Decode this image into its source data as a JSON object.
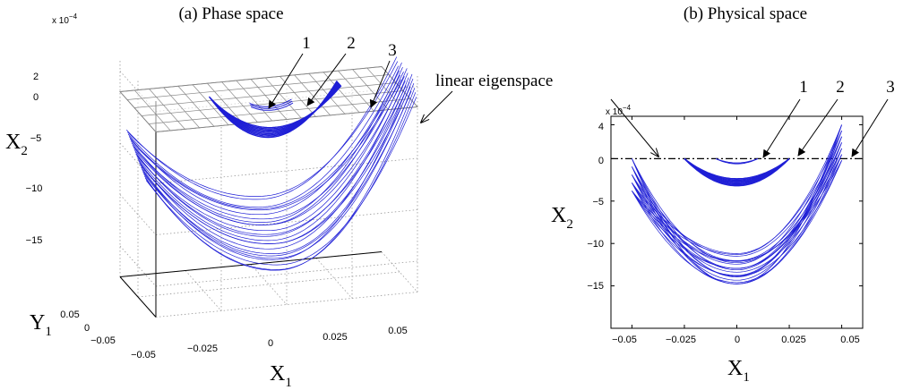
{
  "chart_data": [
    {
      "title": "(a) Phase space",
      "type": "line",
      "projection": "3d",
      "exponent_label": "x 10",
      "exponent_power": "−4",
      "x_axis": {
        "label": "X",
        "subscript": "1",
        "ticks": [
          "−0.05",
          "−0.025",
          "0",
          "0.025",
          "0.05"
        ],
        "range": [
          -0.05,
          0.05
        ]
      },
      "y_axis": {
        "label": "Y",
        "subscript": "1",
        "ticks": [
          "−0.05",
          "0",
          "0.05"
        ],
        "range": [
          -0.05,
          0.05
        ]
      },
      "z_axis": {
        "label": "X",
        "subscript": "2",
        "ticks": [
          "2",
          "0",
          "−5",
          "−10",
          "−15"
        ],
        "range": [
          -18,
          3
        ],
        "unit_scale": "1e-4"
      },
      "grid": "dotted",
      "plane": {
        "name": "linear eigenspace",
        "z": 0
      },
      "series_color": "#1f1fd6",
      "series": [
        {
          "label": "1",
          "x_range": [
            -0.008,
            0.008
          ],
          "z_min": -0.5,
          "z_max": 0
        },
        {
          "label": "2",
          "x_range": [
            -0.025,
            0.025
          ],
          "z_min": -3.2,
          "z_max": 0
        },
        {
          "label": "3",
          "x_range": [
            -0.05,
            0.05
          ],
          "z_min": -15,
          "z_max": 2.6
        }
      ]
    },
    {
      "title": "(b) Physical space",
      "type": "line",
      "exponent_label": "x 10",
      "exponent_power": "−4",
      "x_axis": {
        "label": "X",
        "subscript": "1",
        "ticks": [
          "−0.05",
          "−0.025",
          "0",
          "0.025",
          "0.05"
        ],
        "range": [
          -0.06,
          0.06
        ]
      },
      "y_axis": {
        "label": "X",
        "subscript": "2",
        "ticks": [
          "4",
          "0",
          "−5",
          "−10",
          "−15"
        ],
        "range": [
          -20,
          5
        ],
        "unit_scale": "1e-4"
      },
      "grid": false,
      "eigenspace_line": {
        "y": 0,
        "style": "dash-dot",
        "name": "linear eigenspace"
      },
      "series_color": "#1f1fd6",
      "series": [
        {
          "label": "1",
          "x_range": [
            -0.01,
            0.01
          ],
          "y_min": -0.5,
          "y_max": 0
        },
        {
          "label": "2",
          "x_range": [
            -0.025,
            0.025
          ],
          "y_min": -3.2,
          "y_max": 0
        },
        {
          "label": "3",
          "x_range": [
            -0.05,
            0.05
          ],
          "y_min": -15,
          "y_max": 4
        }
      ]
    }
  ]
}
